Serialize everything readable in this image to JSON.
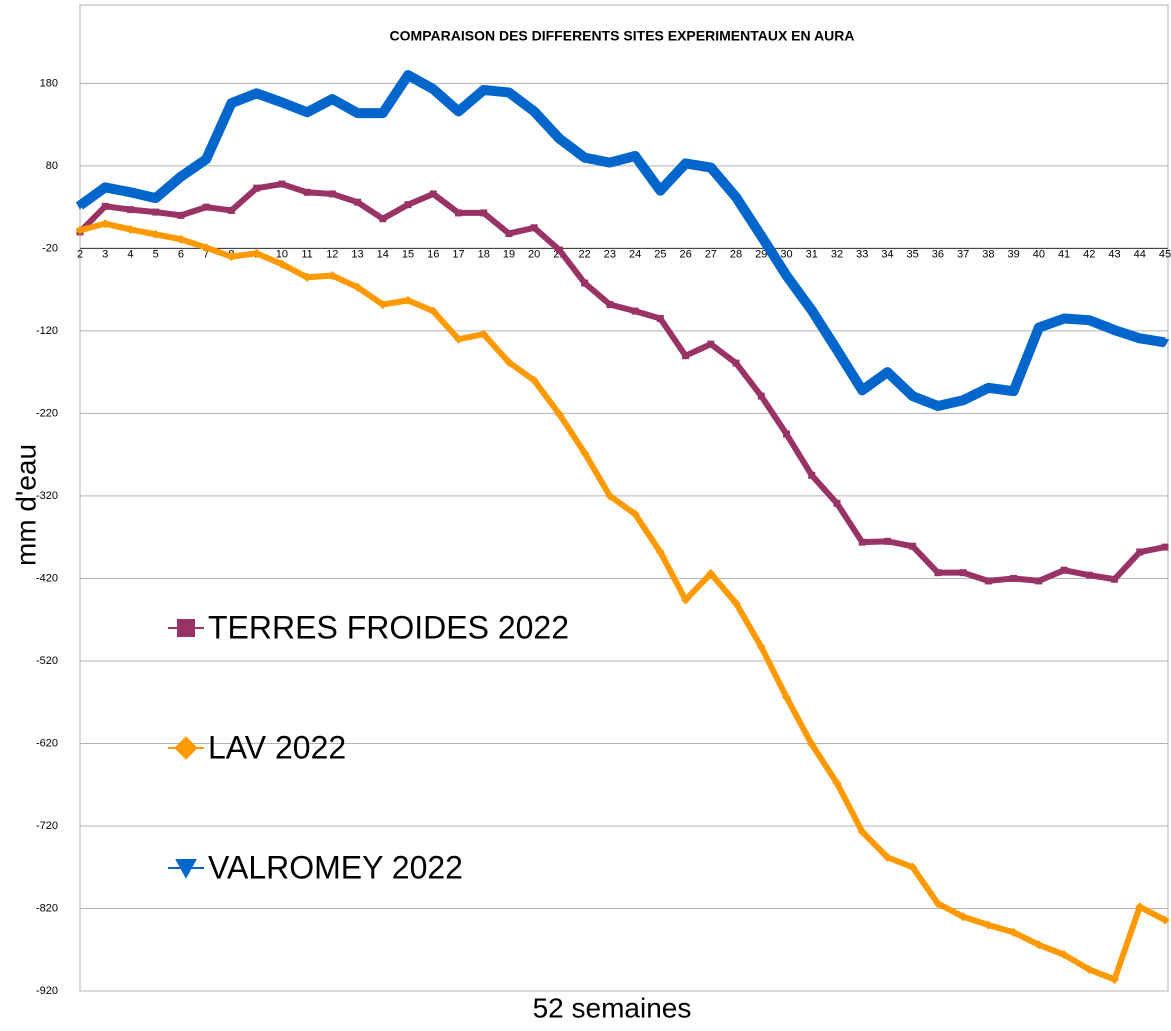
{
  "chart_data": {
    "type": "line",
    "title": "COMPARAISON DES DIFFERENTS SITES EXPERIMENTAUX EN AURA",
    "y_label": "mm d'eau",
    "x_label": "52 semaines",
    "categories": [
      "2",
      "3",
      "4",
      "5",
      "6",
      "7",
      "8",
      "9",
      "10",
      "11",
      "12",
      "13",
      "14",
      "15",
      "16",
      "17",
      "18",
      "19",
      "20",
      "21",
      "22",
      "23",
      "24",
      "25",
      "26",
      "27",
      "28",
      "29",
      "30",
      "31",
      "32",
      "33",
      "34",
      "35",
      "36",
      "37",
      "38",
      "39",
      "40",
      "41",
      "42",
      "43",
      "44",
      "45"
    ],
    "series": [
      {
        "name": "TERRES FROIDES 2022",
        "color": "#993366",
        "marker": "square",
        "width": 6,
        "values": [
          0,
          31,
          27,
          24,
          20,
          30,
          26,
          53,
          58,
          48,
          46,
          36,
          16,
          33,
          46,
          23,
          23,
          -2,
          5,
          -22,
          -62,
          -88,
          -96,
          -105,
          -150,
          -136,
          -159,
          -199,
          -245,
          -295,
          -329,
          -376,
          -375,
          -381,
          -413,
          -413,
          -423,
          -420,
          -423,
          -410,
          -416,
          -421,
          -388,
          -382
        ]
      },
      {
        "name": "LAV 2022",
        "color": "#ff9900",
        "marker": "diamond",
        "width": 6,
        "values": [
          2,
          10,
          3,
          -3,
          -9,
          -19,
          -30,
          -26,
          -39,
          -55,
          -53,
          -67,
          -88,
          -83,
          -96,
          -130,
          -124,
          -158,
          -180,
          -221,
          -268,
          -320,
          -342,
          -388,
          -446,
          -414,
          -450,
          -503,
          -564,
          -621,
          -668,
          -727,
          -758,
          -770,
          -814,
          -830,
          -840,
          -849,
          -864,
          -876,
          -894,
          -906,
          -818,
          -834
        ]
      },
      {
        "name": "VALROMEY 2022",
        "color": "#0066cc",
        "marker": "triangle-down",
        "width": 10,
        "values": [
          32,
          54,
          48,
          41,
          67,
          88,
          156,
          168,
          157,
          145,
          161,
          144,
          144,
          190,
          173,
          146,
          172,
          169,
          146,
          113,
          90,
          84,
          92,
          50,
          83,
          78,
          42,
          -5,
          -53,
          -95,
          -143,
          -192,
          -170,
          -199,
          -211,
          -204,
          -189,
          -193,
          -116,
          -105,
          -107,
          -119,
          -129,
          -134
        ]
      }
    ],
    "ylim": [
      -920,
      275
    ],
    "yticks": [
      -920,
      -820,
      -720,
      -620,
      -520,
      -420,
      -320,
      -220,
      -120,
      -20,
      80,
      180
    ],
    "xaxis_at": -20,
    "grid": true,
    "legend": "left"
  }
}
